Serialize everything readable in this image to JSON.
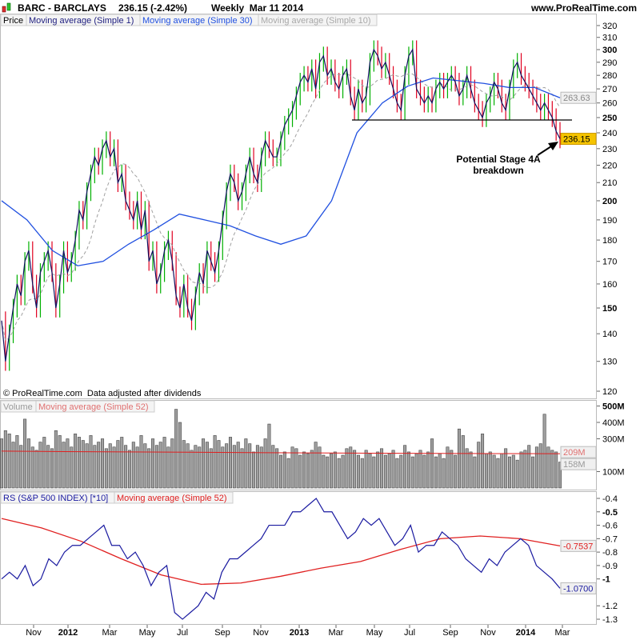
{
  "header": {
    "symbol": "BARC - BARCLAYS",
    "price_change": "236.15 (-2.42%)",
    "period_date": "Weekly  Mar 11 2014",
    "site": "www.ProRealTime.com"
  },
  "price_legend": [
    "Price",
    "Moving average (Simple 1)",
    "Moving average (Simple 30)",
    "Moving average (Simple 10)"
  ],
  "volume_legend": [
    "Volume",
    "Moving average (Simple 52)"
  ],
  "rs_legend": [
    "RS (S&P 500 INDEX) [*10]",
    "Moving average (Simple 52)"
  ],
  "footer_note": "© ProRealTime.com  Data adjusted after dividends",
  "annotation": {
    "line1": "Potential Stage 4A",
    "line2": "breakdown",
    "support_level": 250
  },
  "colors": {
    "up": "#00b000",
    "down": "#e00020",
    "close_line": "#101060",
    "ma30": "#2050e0",
    "ma10": "#a0a0a0",
    "ma52": "#e02020",
    "rs": "#1a1aa0",
    "last_price_bg": "#f5c400"
  },
  "chart_data": [
    {
      "type": "line",
      "title": "BARC - BARCLAYS Weekly",
      "yscale": "log",
      "ylim": [
        118,
        325
      ],
      "y_ticks": [
        120,
        130,
        140,
        150,
        160,
        170,
        180,
        190,
        200,
        210,
        220,
        230,
        240,
        250,
        260,
        270,
        280,
        290,
        300,
        310,
        320
      ],
      "y_tick_labels": [
        "120",
        "130",
        "140",
        "150",
        "160",
        "170",
        "180",
        "190",
        "200",
        "210",
        "220",
        "230",
        "240",
        "250",
        "260",
        "270",
        "280",
        "290",
        "300",
        "310",
        "320"
      ],
      "x_tick_labels": [
        "Nov",
        "2012",
        "Mar",
        "May",
        "Jul",
        "Sep",
        "Nov",
        "2013",
        "Mar",
        "May",
        "Jul",
        "Sep",
        "Nov",
        "2014",
        "Mar"
      ],
      "last_value_labels": {
        "ma30": "263.63",
        "close": "236.15"
      },
      "series": [
        {
          "name": "Close (Simple 1)",
          "values": [
            145,
            130,
            140,
            150,
            160,
            155,
            170,
            175,
            160,
            150,
            165,
            170,
            175,
            165,
            150,
            160,
            175,
            165,
            170,
            180,
            195,
            190,
            205,
            215,
            225,
            220,
            230,
            235,
            225,
            230,
            210,
            215,
            200,
            195,
            190,
            200,
            185,
            195,
            170,
            175,
            160,
            165,
            175,
            180,
            170,
            155,
            150,
            160,
            150,
            145,
            155,
            165,
            160,
            175,
            170,
            165,
            175,
            190,
            205,
            215,
            210,
            200,
            205,
            215,
            225,
            215,
            210,
            225,
            235,
            230,
            225,
            225,
            235,
            245,
            250,
            255,
            265,
            275,
            280,
            275,
            285,
            270,
            290,
            295,
            280,
            285,
            275,
            270,
            280,
            285,
            265,
            255,
            270,
            260,
            265,
            290,
            300,
            295,
            285,
            290,
            280,
            270,
            260,
            255,
            280,
            295,
            300,
            270,
            265,
            260,
            265,
            260,
            270,
            275,
            270,
            275,
            280,
            275,
            265,
            270,
            280,
            270,
            260,
            255,
            250,
            260,
            265,
            275,
            270,
            260,
            255,
            270,
            285,
            290,
            280,
            275,
            270,
            265,
            260,
            255,
            260,
            255,
            250,
            241,
            236.15
          ]
        },
        {
          "name": "Moving average (Simple 30)",
          "values": [
            200,
            190,
            175,
            168,
            170,
            178,
            185,
            193,
            190,
            187,
            182,
            178,
            182,
            200,
            240,
            260,
            272,
            278,
            276,
            274,
            271,
            271,
            263.63
          ]
        }
      ]
    },
    {
      "type": "bar",
      "title": "Volume",
      "y_ticks": [
        100,
        300,
        400,
        500
      ],
      "y_tick_labels": [
        "100M",
        "300M",
        "400M",
        "500M"
      ],
      "last_value_labels": {
        "ma52": "209M",
        "volume": "158M"
      },
      "values_millions": [
        300,
        350,
        330,
        280,
        320,
        260,
        420,
        300,
        250,
        230,
        280,
        310,
        260,
        240,
        350,
        320,
        280,
        300,
        250,
        330,
        310,
        290,
        270,
        320,
        260,
        280,
        300,
        240,
        270,
        250,
        290,
        310,
        260,
        230,
        280,
        250,
        320,
        270,
        240,
        300,
        260,
        280,
        310,
        250,
        300,
        480,
        400,
        290,
        270,
        230,
        260,
        250,
        300,
        280,
        240,
        320,
        290,
        250,
        270,
        310,
        260,
        280,
        240,
        300,
        270,
        220,
        260,
        250,
        300,
        390,
        260,
        240,
        200,
        220,
        180,
        250,
        240,
        200,
        220,
        210,
        230,
        280,
        250,
        200,
        190,
        210,
        220,
        180,
        200,
        240,
        250,
        230,
        200,
        180,
        230,
        210,
        190,
        220,
        240,
        200,
        210,
        230,
        180,
        200,
        260,
        220,
        190,
        210,
        230,
        200,
        220,
        300,
        190,
        210,
        180,
        250,
        230,
        200,
        360,
        320,
        240,
        220,
        190,
        280,
        330,
        210,
        220,
        200,
        180,
        210,
        240,
        190,
        200,
        170,
        220,
        230,
        260,
        190,
        250,
        270,
        450,
        250,
        230,
        220,
        158
      ],
      "ma52_millions": [
        225,
        222,
        220,
        218,
        216,
        214,
        212,
        211,
        210,
        209
      ]
    },
    {
      "type": "line",
      "title": "RS (S&P 500 INDEX) [*10]",
      "ylim": [
        -1.33,
        -0.35
      ],
      "y_ticks": [
        -0.4,
        -0.5,
        -0.6,
        -0.7,
        -0.8,
        -0.9,
        -1,
        -1.2,
        -1.3
      ],
      "y_tick_labels": [
        "-0.4",
        "-0.5",
        "-0.6",
        "-0.7",
        "-0.8",
        "-0.9",
        "-1",
        "-1.2",
        "-1.3"
      ],
      "last_value_labels": {
        "ma52": "-0.7537",
        "rs": "-1.0700"
      },
      "series": [
        {
          "name": "RS",
          "values": [
            -1.0,
            -0.95,
            -1.0,
            -0.9,
            -1.05,
            -1.0,
            -0.85,
            -0.9,
            -0.8,
            -0.75,
            -0.75,
            -0.7,
            -0.65,
            -0.6,
            -0.75,
            -0.75,
            -0.85,
            -0.8,
            -0.9,
            -1.05,
            -0.95,
            -0.9,
            -1.25,
            -1.3,
            -1.25,
            -1.2,
            -1.1,
            -1.15,
            -0.95,
            -0.85,
            -0.85,
            -0.8,
            -0.75,
            -0.7,
            -0.6,
            -0.6,
            -0.6,
            -0.5,
            -0.5,
            -0.45,
            -0.4,
            -0.5,
            -0.5,
            -0.6,
            -0.7,
            -0.65,
            -0.55,
            -0.6,
            -0.55,
            -0.65,
            -0.75,
            -0.7,
            -0.6,
            -0.8,
            -0.75,
            -0.75,
            -0.65,
            -0.7,
            -0.75,
            -0.85,
            -0.9,
            -0.95,
            -0.85,
            -0.9,
            -0.8,
            -0.75,
            -0.7,
            -0.75,
            -0.9,
            -0.95,
            -1.0,
            -1.07
          ]
        },
        {
          "name": "Moving average (Simple 52)",
          "values": [
            -0.55,
            -0.62,
            -0.72,
            -0.85,
            -0.97,
            -1.04,
            -1.03,
            -0.98,
            -0.92,
            -0.87,
            -0.78,
            -0.7,
            -0.68,
            -0.7,
            -0.7537
          ]
        }
      ]
    }
  ]
}
